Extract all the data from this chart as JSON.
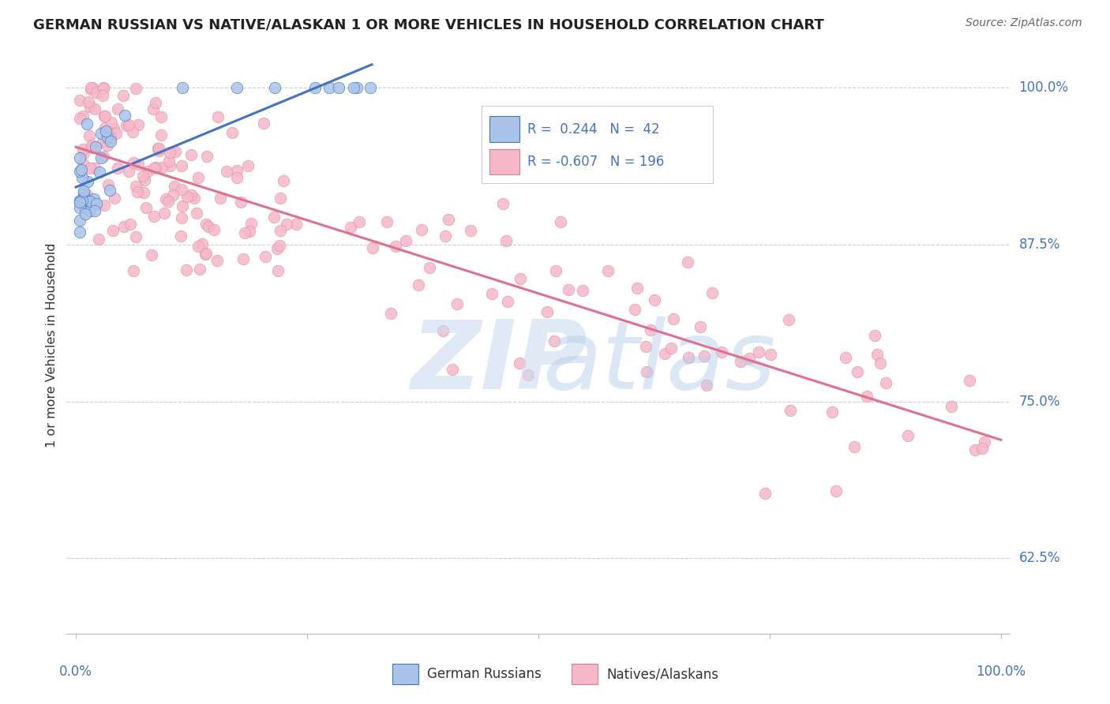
{
  "title": "GERMAN RUSSIAN VS NATIVE/ALASKAN 1 OR MORE VEHICLES IN HOUSEHOLD CORRELATION CHART",
  "source": "Source: ZipAtlas.com",
  "ylabel": "1 or more Vehicles in Household",
  "legend_r_blue": "0.244",
  "legend_n_blue": "42",
  "legend_r_pink": "-0.607",
  "legend_n_pink": "196",
  "blue_color": "#aac4e8",
  "pink_color": "#f5b8c8",
  "blue_line_color": "#4472C4",
  "pink_line_color": "#E07090",
  "yticks": [
    0.625,
    0.75,
    0.875,
    1.0
  ],
  "ytick_labels": [
    "62.5%",
    "75.0%",
    "87.5%",
    "100.0%"
  ],
  "ylim_low": 0.565,
  "ylim_high": 1.025,
  "xlim_low": -0.01,
  "xlim_high": 1.01
}
